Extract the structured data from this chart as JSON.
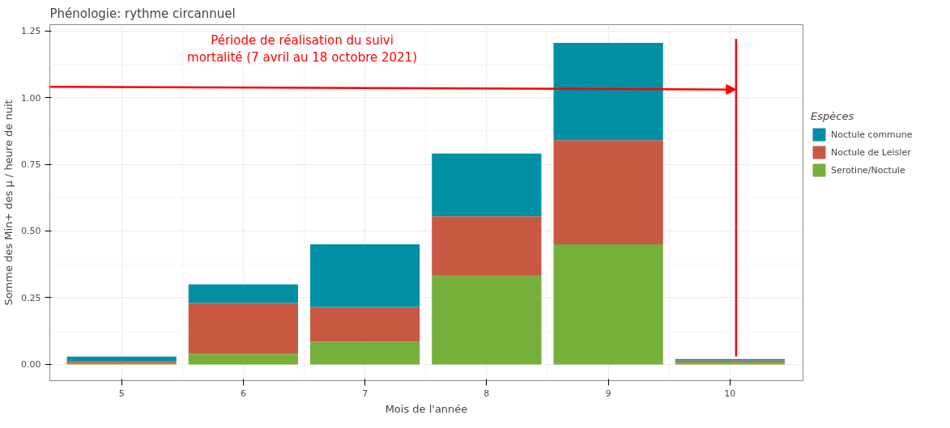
{
  "chart_data": {
    "type": "bar",
    "stacked": true,
    "title": "Phénologie: rythme circannuel",
    "xlabel": "Mois de l'année",
    "ylabel": "Somme des Min+ des µ / heure de nuit",
    "legend_title": "Espèces",
    "x": [
      5,
      6,
      7,
      8,
      9,
      10
    ],
    "series": [
      {
        "name": "Serotine/Noctule",
        "color": "#75b03b",
        "values": [
          0.005,
          0.04,
          0.085,
          0.335,
          0.45,
          0.008
        ]
      },
      {
        "name": "Noctule de Leisler",
        "color": "#c95843",
        "values": [
          0.006,
          0.19,
          0.13,
          0.22,
          0.39,
          0.007
        ]
      },
      {
        "name": "Noctule commune",
        "color": "#0090a4",
        "values": [
          0.018,
          0.07,
          0.235,
          0.235,
          0.365,
          0.005
        ]
      }
    ],
    "xlim": [
      4.41,
      10.6
    ],
    "ylim": [
      -0.061,
      1.273
    ],
    "xticks": [
      5,
      6,
      7,
      8,
      9,
      10
    ],
    "yticks": [
      {
        "value": 0,
        "label": "0.00"
      },
      {
        "value": 0.25,
        "label": "0.25"
      },
      {
        "value": 0.5,
        "label": "0.50"
      },
      {
        "value": 0.75,
        "label": "0.75"
      },
      {
        "value": 1,
        "label": "1.00"
      },
      {
        "value": 1.25,
        "label": "1.25"
      }
    ],
    "annotations": [
      "Période de réalisation du suivi\nmortalité (7 avril au 18 octobre 2021)"
    ],
    "ref_lines": [
      {
        "axis": "x",
        "value": 10.05,
        "color": "#ff0000"
      }
    ],
    "grid": true,
    "legend": "right"
  }
}
